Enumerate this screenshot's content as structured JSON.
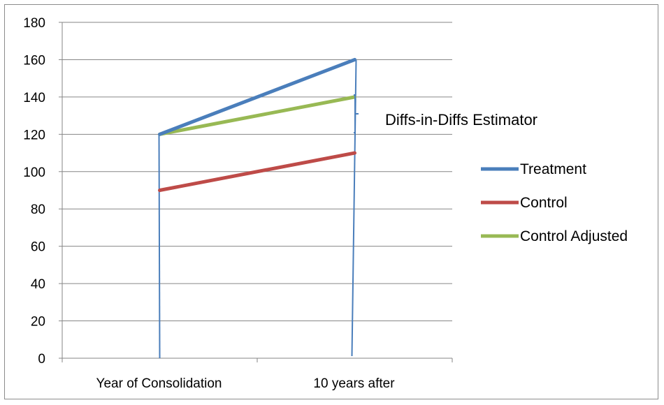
{
  "chart_data": {
    "type": "line",
    "categories": [
      "Year of Consolidation",
      "10 years after"
    ],
    "series": [
      {
        "name": "Treatment",
        "values": [
          120,
          160
        ],
        "color": "#4a7ebb"
      },
      {
        "name": "Control",
        "values": [
          90,
          110
        ],
        "color": "#be4b48"
      },
      {
        "name": "Control Adjusted",
        "values": [
          120,
          140
        ],
        "color": "#98b954"
      }
    ],
    "ylim": [
      0,
      180
    ],
    "yticks": [
      0,
      20,
      40,
      60,
      80,
      100,
      120,
      140,
      160,
      180
    ],
    "grid": true,
    "legend_position": "right",
    "annotation": "Diffs-in-Diffs Estimator",
    "drop_line_color": "#4a7ebb"
  }
}
